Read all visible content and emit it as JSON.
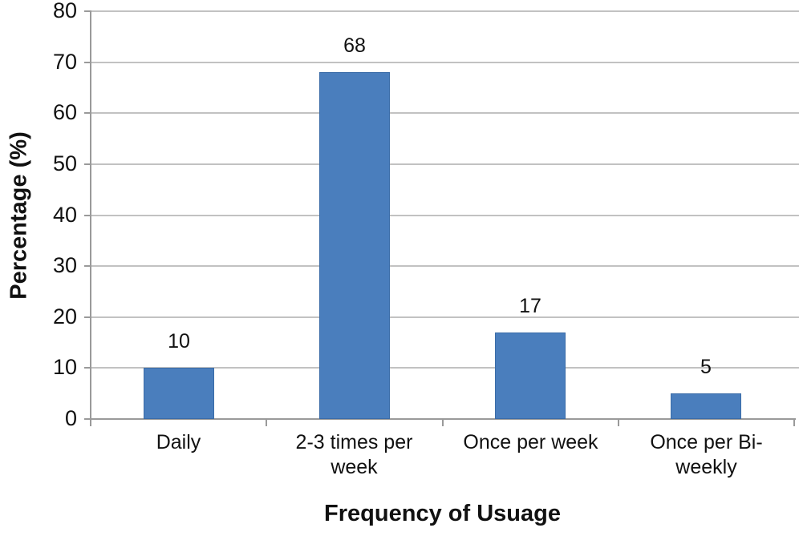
{
  "chart_data": {
    "type": "bar",
    "categories": [
      "Daily",
      "2-3 times per week",
      "Once per week",
      "Once per Bi-weekly"
    ],
    "category_display": [
      "Daily",
      "2-3 times per\nweek",
      "Once per week",
      "Once per Bi-\nweekly"
    ],
    "values": [
      10,
      68,
      17,
      5
    ],
    "data_labels": [
      "10",
      "68",
      "17",
      "5"
    ],
    "title": "",
    "xlabel": "Frequency of Usuage",
    "ylabel": "Percentage (%)",
    "ylim": [
      0,
      80
    ],
    "yticks": [
      0,
      10,
      20,
      30,
      40,
      50,
      60,
      70,
      80
    ],
    "grid": "horizontal gridlines on",
    "legend": "none",
    "bar_color": "#4a7ebd",
    "bar_border_color": "#3b6ca8",
    "gridline_color": "#c2c2c2",
    "axis_color": "#9a9a9a",
    "text_color": "#111111"
  }
}
